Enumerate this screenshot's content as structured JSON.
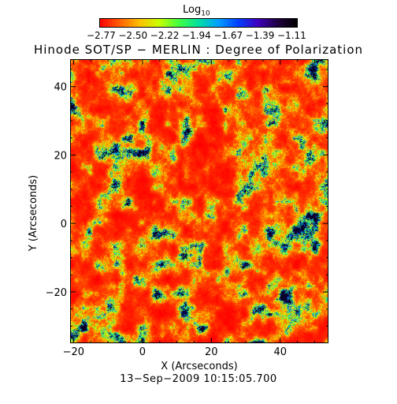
{
  "colorbar": {
    "label": "Log",
    "label_sub": "10",
    "ticks": [
      "−2.77",
      "−2.50",
      "−2.22",
      "−1.94",
      "−1.67",
      "−1.39",
      "−1.11"
    ],
    "colors": [
      "#ff0000",
      "#ff6000",
      "#ffc000",
      "#c8ff00",
      "#40ff40",
      "#00e0a0",
      "#00a0ff",
      "#0040ff",
      "#4000c0",
      "#200040",
      "#000000"
    ]
  },
  "title": "Hinode SOT/SP − MERLIN : Degree of Polarization",
  "footer": "13−Sep−2009 10:15:05.700",
  "chart_data": {
    "type": "heatmap",
    "title": "Hinode SOT/SP − MERLIN : Degree of Polarization",
    "xlabel": "X (Arcseconds)",
    "ylabel": "Y (Arcseconds)",
    "xlim": [
      -21,
      54
    ],
    "ylim": [
      -35,
      48
    ],
    "x_ticks": [
      "−20",
      "0",
      "20",
      "40"
    ],
    "y_ticks": [
      "−20",
      "0",
      "20",
      "40"
    ],
    "x_tick_values": [
      -20,
      0,
      20,
      40
    ],
    "y_tick_values": [
      -20,
      0,
      20,
      40
    ],
    "value_range": [
      -2.77,
      -1.11
    ],
    "colorbar_label": "Log10"
  }
}
